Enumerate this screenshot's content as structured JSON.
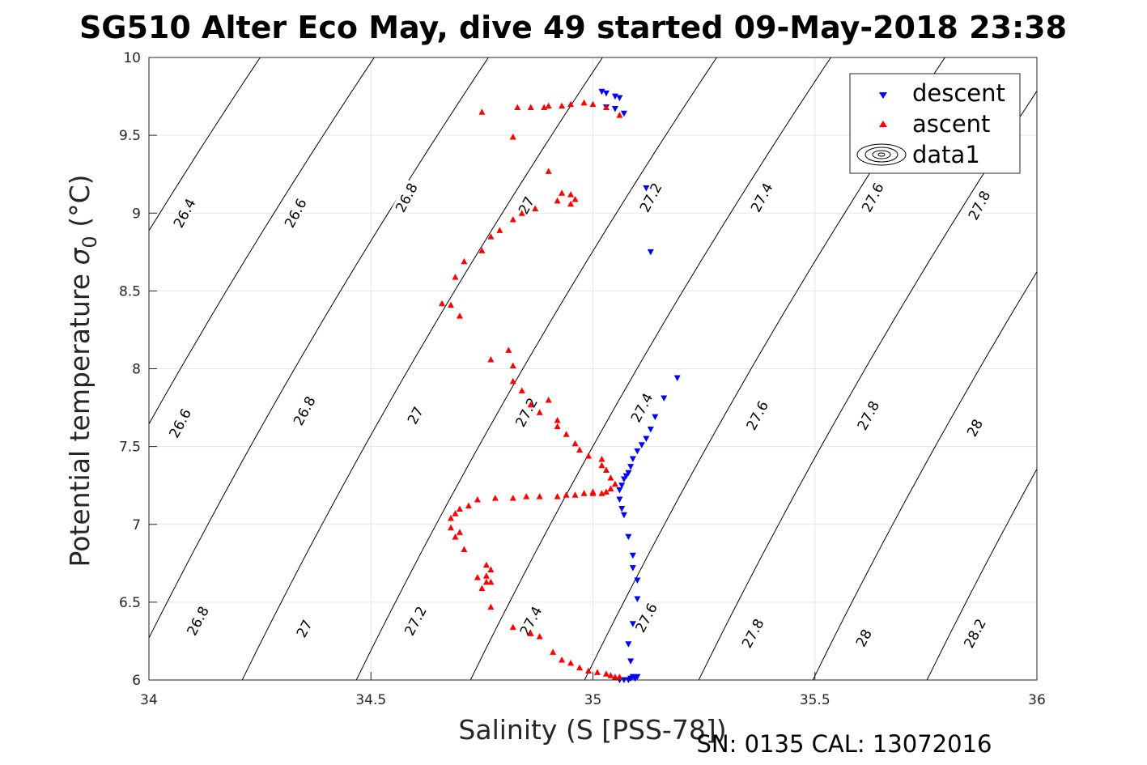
{
  "chart_data": {
    "type": "scatter",
    "title": "SG510 Alter Eco May, dive 49 started 09-May-2018 23:38",
    "xlabel": "Salinity (S [PSS-78])",
    "ylabel_main": "Potential temperature ",
    "ylabel_sym": "σ",
    "ylabel_sub": "0",
    "ylabel_unit": " (°C)",
    "footer": "SN: 0135  CAL: 13072016",
    "xlim": [
      34,
      36
    ],
    "ylim": [
      6,
      10
    ],
    "x_ticks": [
      "34",
      "34.5",
      "35",
      "35.5",
      "36"
    ],
    "y_ticks": [
      "6",
      "6.5",
      "7",
      "7.5",
      "8",
      "8.5",
      "9",
      "9.5",
      "10"
    ],
    "grid": true,
    "legend_position": "top-right",
    "legend": [
      {
        "label": "descent",
        "marker": "triangle-down",
        "color": "#0000ff"
      },
      {
        "label": "ascent",
        "marker": "triangle-up",
        "color": "#ff0000"
      },
      {
        "label": "data1",
        "marker": "contour"
      }
    ],
    "contour_labels": [
      {
        "text": "26.4",
        "s": 34.08,
        "t": 9.0
      },
      {
        "text": "26.6",
        "s": 34.33,
        "t": 9.0
      },
      {
        "text": "26.8",
        "s": 34.58,
        "t": 9.1
      },
      {
        "text": "27",
        "s": 34.85,
        "t": 9.05
      },
      {
        "text": "27.2",
        "s": 35.13,
        "t": 9.1
      },
      {
        "text": "27.4",
        "s": 35.38,
        "t": 9.1
      },
      {
        "text": "27.6",
        "s": 35.63,
        "t": 9.1
      },
      {
        "text": "27.8",
        "s": 35.87,
        "t": 9.05
      },
      {
        "text": "26.6",
        "s": 34.07,
        "t": 7.65
      },
      {
        "text": "26.8",
        "s": 34.35,
        "t": 7.73
      },
      {
        "text": "27",
        "s": 34.6,
        "t": 7.7
      },
      {
        "text": "27.2",
        "s": 34.85,
        "t": 7.72
      },
      {
        "text": "27.4",
        "s": 35.11,
        "t": 7.75
      },
      {
        "text": "27.6",
        "s": 35.37,
        "t": 7.7
      },
      {
        "text": "27.8",
        "s": 35.62,
        "t": 7.7
      },
      {
        "text": "28",
        "s": 35.86,
        "t": 7.62
      },
      {
        "text": "26.8",
        "s": 34.11,
        "t": 6.38
      },
      {
        "text": "27",
        "s": 34.35,
        "t": 6.33
      },
      {
        "text": "27.2",
        "s": 34.6,
        "t": 6.38
      },
      {
        "text": "27.4",
        "s": 34.86,
        "t": 6.38
      },
      {
        "text": "27.6",
        "s": 35.12,
        "t": 6.4
      },
      {
        "text": "27.8",
        "s": 35.36,
        "t": 6.3
      },
      {
        "text": "28",
        "s": 35.61,
        "t": 6.27
      },
      {
        "text": "28.2",
        "s": 35.86,
        "t": 6.3
      }
    ],
    "descent": {
      "x": [
        35.02,
        35.03,
        35.05,
        35.06,
        35.03,
        35.05,
        35.07,
        35.12,
        35.13,
        35.19,
        35.16,
        35.14,
        35.13,
        35.12,
        35.11,
        35.1,
        35.09,
        35.085,
        35.08,
        35.075,
        35.07,
        35.065,
        35.06,
        35.06,
        35.065,
        35.07,
        35.08,
        35.09,
        35.09,
        35.1,
        35.1,
        35.09,
        35.08,
        35.085,
        35.09,
        35.1,
        35.095,
        35.085,
        35.08,
        35.07,
        35.06
      ],
      "y": [
        9.78,
        9.77,
        9.75,
        9.74,
        9.68,
        9.67,
        9.64,
        9.16,
        8.75,
        7.94,
        7.81,
        7.69,
        7.61,
        7.55,
        7.51,
        7.47,
        7.42,
        7.37,
        7.33,
        7.31,
        7.29,
        7.25,
        7.22,
        7.16,
        7.1,
        7.06,
        6.92,
        6.8,
        6.72,
        6.64,
        6.52,
        6.36,
        6.23,
        6.12,
        6.02,
        6.02,
        6.01,
        6.01,
        6.0,
        6.0,
        6.0
      ]
    },
    "ascent": {
      "x": [
        35.06,
        35.03,
        35.0,
        34.98,
        34.95,
        34.93,
        34.9,
        34.89,
        34.86,
        34.83,
        34.82,
        34.75,
        34.9,
        34.93,
        34.95,
        34.96,
        34.95,
        34.92,
        34.87,
        34.84,
        34.82,
        34.79,
        34.77,
        34.75,
        34.71,
        34.69,
        34.66,
        34.7,
        34.68,
        34.77,
        34.81,
        34.82,
        34.82,
        34.84,
        34.86,
        34.88,
        34.9,
        34.92,
        34.92,
        34.94,
        34.96,
        34.97,
        34.99,
        35.02,
        35.02,
        35.03,
        35.04,
        35.05,
        35.04,
        35.03,
        35.02,
        35.0,
        35.0,
        34.98,
        34.96,
        34.94,
        34.92,
        34.88,
        34.85,
        34.82,
        34.78,
        34.74,
        34.72,
        34.7,
        34.69,
        34.68,
        34.68,
        34.69,
        34.7,
        34.71,
        34.76,
        34.77,
        34.76,
        34.76,
        34.75,
        34.77,
        34.74,
        34.77,
        34.82,
        34.86,
        34.88,
        34.91,
        34.93,
        34.95,
        34.97,
        34.99,
        35.01,
        35.03,
        35.04,
        35.05,
        35.06
      ],
      "y": [
        9.63,
        9.68,
        9.7,
        9.71,
        9.7,
        9.69,
        9.69,
        9.68,
        9.68,
        9.68,
        9.49,
        9.65,
        9.27,
        9.13,
        9.12,
        9.09,
        9.06,
        9.08,
        9.03,
        9.0,
        8.96,
        8.89,
        8.85,
        8.76,
        8.69,
        8.59,
        8.42,
        8.34,
        8.41,
        8.06,
        8.12,
        8.02,
        7.92,
        7.86,
        7.77,
        7.72,
        7.8,
        7.67,
        7.63,
        7.58,
        7.52,
        7.48,
        7.44,
        7.42,
        7.38,
        7.35,
        7.3,
        7.26,
        7.23,
        7.21,
        7.2,
        7.2,
        7.21,
        7.2,
        7.19,
        7.19,
        7.18,
        7.18,
        7.18,
        7.17,
        7.17,
        7.16,
        7.12,
        7.1,
        7.07,
        7.04,
        6.98,
        6.92,
        6.95,
        6.84,
        6.74,
        6.71,
        6.67,
        6.63,
        6.59,
        6.63,
        6.66,
        6.47,
        6.34,
        6.3,
        6.28,
        6.18,
        6.13,
        6.11,
        6.08,
        6.06,
        6.05,
        6.04,
        6.03,
        6.02,
        6.02
      ]
    }
  }
}
